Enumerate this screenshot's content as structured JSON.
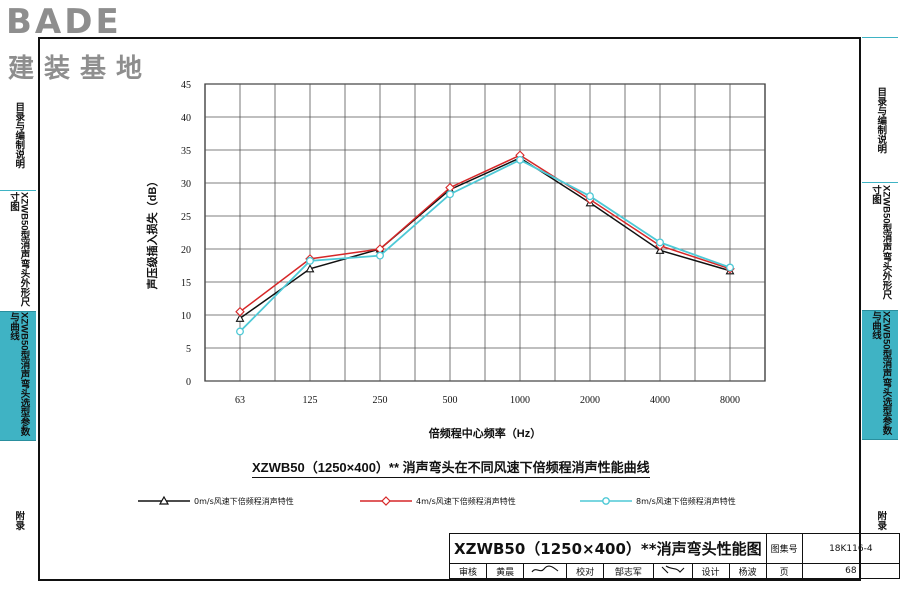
{
  "logo": {
    "main": "BADE",
    "sub": "建装基地"
  },
  "left_sidebar": [
    {
      "label": "目录与编制说明"
    },
    {
      "label": "XZWB50型消声弯头外形尺寸图"
    },
    {
      "label": "XZWB50型消声弯头选型参数与曲线"
    },
    {
      "label": "附录"
    }
  ],
  "right_sidebar": [
    {
      "label": "目录与编制说明"
    },
    {
      "label": "XZWB50型消声弯头外形尺寸图"
    },
    {
      "label": "XZWB50型消声弯头选型参数与曲线"
    },
    {
      "label": "附录"
    }
  ],
  "colors": {
    "accent": "#3fb3c4",
    "series_0": "#111111",
    "series_1": "#d62728",
    "series_2": "#4ec9d6"
  },
  "chart_data": {
    "type": "line",
    "title": "XZWB50（1250×400）** 消声弯头在不同风速下倍频程消声性能曲线",
    "xlabel": "倍频程中心频率（Hz）",
    "ylabel": "声压级插入损失（dB）",
    "categories": [
      "63",
      "125",
      "250",
      "500",
      "1000",
      "2000",
      "4000",
      "8000"
    ],
    "ylim": [
      0,
      45
    ],
    "yticks": [
      "0",
      "5",
      "10",
      "15",
      "20",
      "25",
      "30",
      "35",
      "40",
      "45"
    ],
    "grid": true,
    "legend_position": "bottom",
    "series": [
      {
        "name": "0m/s风速下倍频程消声特性",
        "values": [
          9.5,
          17.0,
          20.0,
          29.0,
          33.8,
          27.0,
          19.8,
          16.7
        ]
      },
      {
        "name": "4m/s风速下倍频程消声特性",
        "values": [
          10.5,
          18.5,
          20.0,
          29.3,
          34.2,
          27.5,
          20.5,
          17.0
        ]
      },
      {
        "name": "8m/s风速下倍频程消声特性",
        "values": [
          7.5,
          18.2,
          19.0,
          28.3,
          33.5,
          28.0,
          21.0,
          17.2
        ]
      }
    ]
  },
  "title_block": {
    "title": "XZWB50（1250×400）**消声弯头性能图",
    "atlas_no_label": "图集号",
    "atlas_no": "18K116-4",
    "review_label": "审核",
    "reviewer": "黄晨",
    "check_label": "校对",
    "checker": "郜志军",
    "design_label": "设计",
    "designer": "杨波",
    "page_label": "页",
    "page": "68"
  }
}
